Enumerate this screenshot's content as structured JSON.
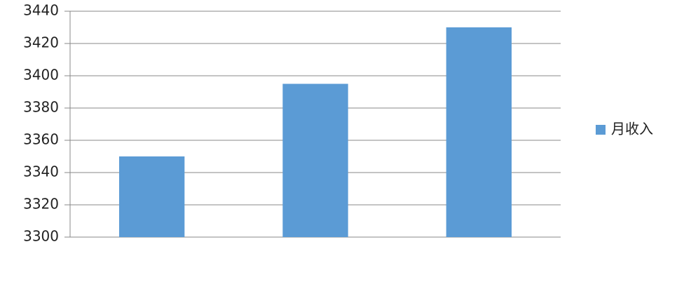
{
  "chart_data": {
    "type": "bar",
    "categories": [
      null,
      null,
      null
    ],
    "series": [
      {
        "name": "月收入",
        "color": "#5b9bd5",
        "values": [
          3350,
          3395,
          3430
        ]
      }
    ],
    "ylim": [
      3300,
      3440
    ],
    "yticks": [
      3300,
      3320,
      3340,
      3360,
      3380,
      3400,
      3420,
      3440
    ],
    "grid": true,
    "legend": "right"
  }
}
